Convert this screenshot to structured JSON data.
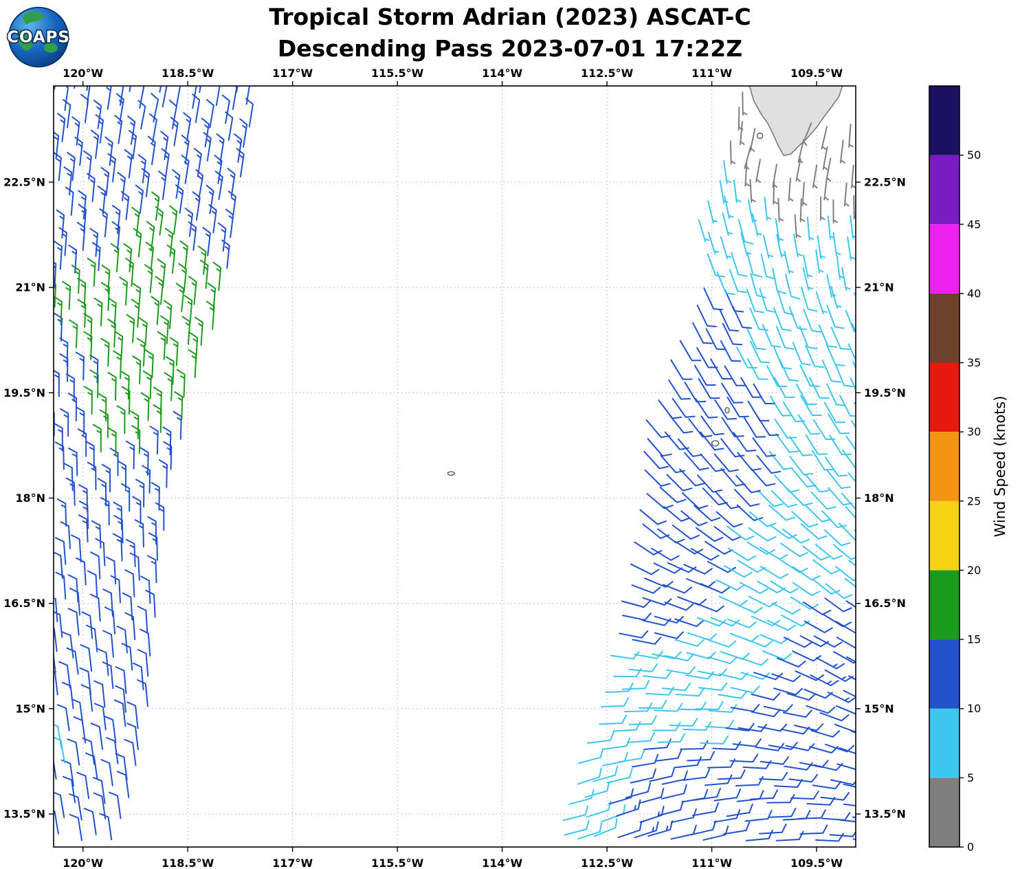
{
  "header": {
    "title_line1": "Tropical Storm Adrian (2023) ASCAT-C",
    "title_line2": "Descending Pass 2023-07-01 17:22Z",
    "logo_text": "COAPS"
  },
  "colorbar": {
    "label": "Wind Speed (knots)",
    "ticks": [
      0,
      5,
      10,
      15,
      20,
      25,
      30,
      35,
      40,
      45,
      50
    ],
    "segments": [
      {
        "from": 0,
        "to": 5,
        "color": "#7f7f7f"
      },
      {
        "from": 5,
        "to": 10,
        "color": "#3cc6f0"
      },
      {
        "from": 10,
        "to": 15,
        "color": "#2251cc"
      },
      {
        "from": 15,
        "to": 20,
        "color": "#1c9a1c"
      },
      {
        "from": 20,
        "to": 25,
        "color": "#f5d312"
      },
      {
        "from": 25,
        "to": 30,
        "color": "#f59312"
      },
      {
        "from": 30,
        "to": 35,
        "color": "#e81a10"
      },
      {
        "from": 35,
        "to": 40,
        "color": "#6e422c"
      },
      {
        "from": 40,
        "to": 45,
        "color": "#ef1fef"
      },
      {
        "from": 45,
        "to": 50,
        "color": "#7a1cc4"
      },
      {
        "from": 50,
        "to": 55,
        "color": "#1b1161"
      }
    ]
  },
  "chart_data": {
    "type": "wind_barb_map",
    "title": "Tropical Storm Adrian (2023) ASCAT-C — Descending Pass 2023-07-01 17:22Z",
    "units": "knots",
    "lon_range": [
      -120.42,
      -108.94
    ],
    "lat_range": [
      13.03,
      23.87
    ],
    "x_axis": {
      "ticks": [
        "120°W",
        "118.5°W",
        "117°W",
        "115.5°W",
        "114°W",
        "112.5°W",
        "111°W",
        "109.5°W"
      ],
      "tick_values": [
        -120,
        -118.5,
        -117,
        -115.5,
        -114,
        -112.5,
        -111,
        -109.5
      ]
    },
    "y_axis": {
      "ticks": [
        "22.5°N",
        "21°N",
        "19.5°N",
        "18°N",
        "16.5°N",
        "15°N",
        "13.5°N"
      ],
      "tick_values": [
        22.5,
        21,
        19.5,
        18,
        16.5,
        15,
        13.5
      ]
    },
    "grid": true,
    "land": {
      "name": "baja-california-tip",
      "fill": "#e0e0e0",
      "stroke": "#7a7a7a",
      "polygon": [
        [
          -110.47,
          23.9
        ],
        [
          -110.4,
          23.66
        ],
        [
          -110.3,
          23.48
        ],
        [
          -110.2,
          23.34
        ],
        [
          -110.12,
          23.18
        ],
        [
          -110.05,
          23.02
        ],
        [
          -109.97,
          22.88
        ],
        [
          -109.87,
          22.9
        ],
        [
          -109.77,
          23.0
        ],
        [
          -109.64,
          23.12
        ],
        [
          -109.5,
          23.28
        ],
        [
          -109.38,
          23.45
        ],
        [
          -109.28,
          23.58
        ],
        [
          -109.18,
          23.72
        ],
        [
          -109.12,
          23.9
        ]
      ],
      "mask_boxes": [
        [
          -110.55,
          -108.9,
          23.38,
          24.0
        ],
        [
          -110.35,
          -109.7,
          22.92,
          23.38
        ]
      ]
    },
    "islands": [
      {
        "name": "socorro",
        "lon": -110.95,
        "lat": 18.78,
        "rx": 5,
        "ry": 4
      },
      {
        "name": "san-benedicto",
        "lon": -110.78,
        "lat": 19.25,
        "rx": 3,
        "ry": 4
      },
      {
        "name": "clarion",
        "lon": -114.73,
        "lat": 18.35,
        "rx": 5,
        "ry": 2.5
      },
      {
        "name": "cerralvo",
        "lon": -110.31,
        "lat": 23.16,
        "rx": 4,
        "ry": 4
      }
    ],
    "swaths": [
      {
        "name": "left-swath",
        "anchor": "right",
        "spacing_deg": 0.26,
        "left_edge": [
          [
            13.0,
            -120.62
          ],
          [
            23.9,
            -120.62
          ]
        ],
        "right_edge": [
          [
            13.0,
            -119.6
          ],
          [
            13.8,
            -119.35
          ],
          [
            15.0,
            -119.12
          ],
          [
            16.5,
            -119.0
          ],
          [
            18.0,
            -118.85
          ],
          [
            19.5,
            -118.5
          ],
          [
            21.0,
            -118.02
          ],
          [
            22.5,
            -117.8
          ],
          [
            23.9,
            -117.55
          ]
        ],
        "control_points": [
          [
            -120.3,
            23.6,
            8,
            12
          ],
          [
            -119.0,
            23.4,
            12,
            12
          ],
          [
            -118.0,
            23.3,
            10,
            12
          ],
          [
            -120.2,
            22.0,
            5,
            12
          ],
          [
            -118.9,
            21.8,
            8,
            16
          ],
          [
            -118.3,
            22.3,
            10,
            13
          ],
          [
            -119.9,
            20.6,
            2,
            16
          ],
          [
            -119.2,
            20.3,
            4,
            17
          ],
          [
            -118.7,
            20.8,
            6,
            16
          ],
          [
            -120.3,
            19.4,
            0,
            13
          ],
          [
            -119.6,
            19.0,
            0,
            17
          ],
          [
            -119.1,
            19.3,
            2,
            16
          ],
          [
            -120.2,
            18.2,
            358,
            12
          ],
          [
            -119.4,
            18.0,
            0,
            14
          ],
          [
            -119.0,
            18.3,
            2,
            15
          ],
          [
            -120.3,
            17.0,
            355,
            12
          ],
          [
            -119.5,
            16.8,
            357,
            12
          ],
          [
            -120.2,
            15.6,
            352,
            12
          ],
          [
            -119.4,
            15.3,
            355,
            12
          ],
          [
            -120.35,
            14.4,
            350,
            9
          ],
          [
            -119.6,
            14.2,
            352,
            12
          ],
          [
            -120.2,
            13.3,
            350,
            12
          ],
          [
            -119.8,
            13.1,
            352,
            12
          ]
        ]
      },
      {
        "name": "right-swath",
        "anchor": "left",
        "spacing_deg": 0.26,
        "left_edge": [
          [
            13.0,
            -113.2
          ],
          [
            14.0,
            -112.95
          ],
          [
            15.0,
            -112.55
          ],
          [
            16.0,
            -112.35
          ],
          [
            17.0,
            -112.15
          ],
          [
            18.0,
            -111.95
          ],
          [
            19.0,
            -111.95
          ],
          [
            19.8,
            -111.6
          ],
          [
            20.5,
            -111.3
          ],
          [
            21.2,
            -110.95
          ],
          [
            22.0,
            -111.15
          ],
          [
            22.6,
            -110.9
          ],
          [
            23.2,
            -110.62
          ],
          [
            23.9,
            -110.55
          ]
        ],
        "right_edge": [
          [
            13.0,
            -108.9
          ],
          [
            23.9,
            -108.9
          ]
        ],
        "control_points": [
          [
            -110.45,
            23.05,
            205,
            3
          ],
          [
            -110.2,
            23.0,
            200,
            4
          ],
          [
            -109.9,
            22.9,
            200,
            3
          ],
          [
            -109.6,
            23.4,
            210,
            3
          ],
          [
            -109.4,
            22.85,
            195,
            3
          ],
          [
            -109.2,
            22.6,
            190,
            4
          ],
          [
            -109.8,
            22.3,
            185,
            4
          ],
          [
            -110.9,
            22.9,
            170,
            7
          ],
          [
            -110.6,
            22.0,
            165,
            8
          ],
          [
            -109.3,
            21.5,
            175,
            7
          ],
          [
            -110.2,
            21.3,
            170,
            8
          ],
          [
            -111.0,
            20.8,
            155,
            12
          ],
          [
            -110.0,
            20.3,
            160,
            10
          ],
          [
            -111.3,
            19.8,
            150,
            13
          ],
          [
            -109.2,
            19.8,
            160,
            8
          ],
          [
            -110.6,
            19.3,
            150,
            12
          ],
          [
            -111.7,
            18.8,
            140,
            12
          ],
          [
            -109.5,
            18.8,
            150,
            9
          ],
          [
            -110.9,
            18.3,
            140,
            12
          ],
          [
            -111.9,
            17.8,
            130,
            13
          ],
          [
            -109.2,
            17.9,
            140,
            8
          ],
          [
            -110.4,
            17.3,
            120,
            9
          ],
          [
            -111.5,
            16.8,
            110,
            12
          ],
          [
            -109.4,
            16.8,
            130,
            10
          ],
          [
            -112.2,
            16.2,
            100,
            11
          ],
          [
            -110.8,
            16.0,
            110,
            8
          ],
          [
            -109.2,
            15.9,
            120,
            11
          ],
          [
            -109.35,
            15.5,
            120,
            16
          ],
          [
            -112.4,
            15.2,
            85,
            9
          ],
          [
            -111.3,
            15.0,
            90,
            10
          ],
          [
            -110.0,
            14.9,
            100,
            12
          ],
          [
            -109.2,
            14.6,
            110,
            12
          ],
          [
            -112.9,
            14.0,
            70,
            8
          ],
          [
            -111.9,
            13.8,
            75,
            11
          ],
          [
            -110.8,
            13.5,
            80,
            10
          ],
          [
            -109.9,
            13.3,
            85,
            11
          ],
          [
            -109.2,
            13.2,
            95,
            10
          ],
          [
            -112.6,
            13.2,
            65,
            8
          ],
          [
            -111.2,
            13.1,
            75,
            12
          ],
          [
            -112.15,
            13.35,
            70,
            17
          ]
        ]
      }
    ]
  }
}
